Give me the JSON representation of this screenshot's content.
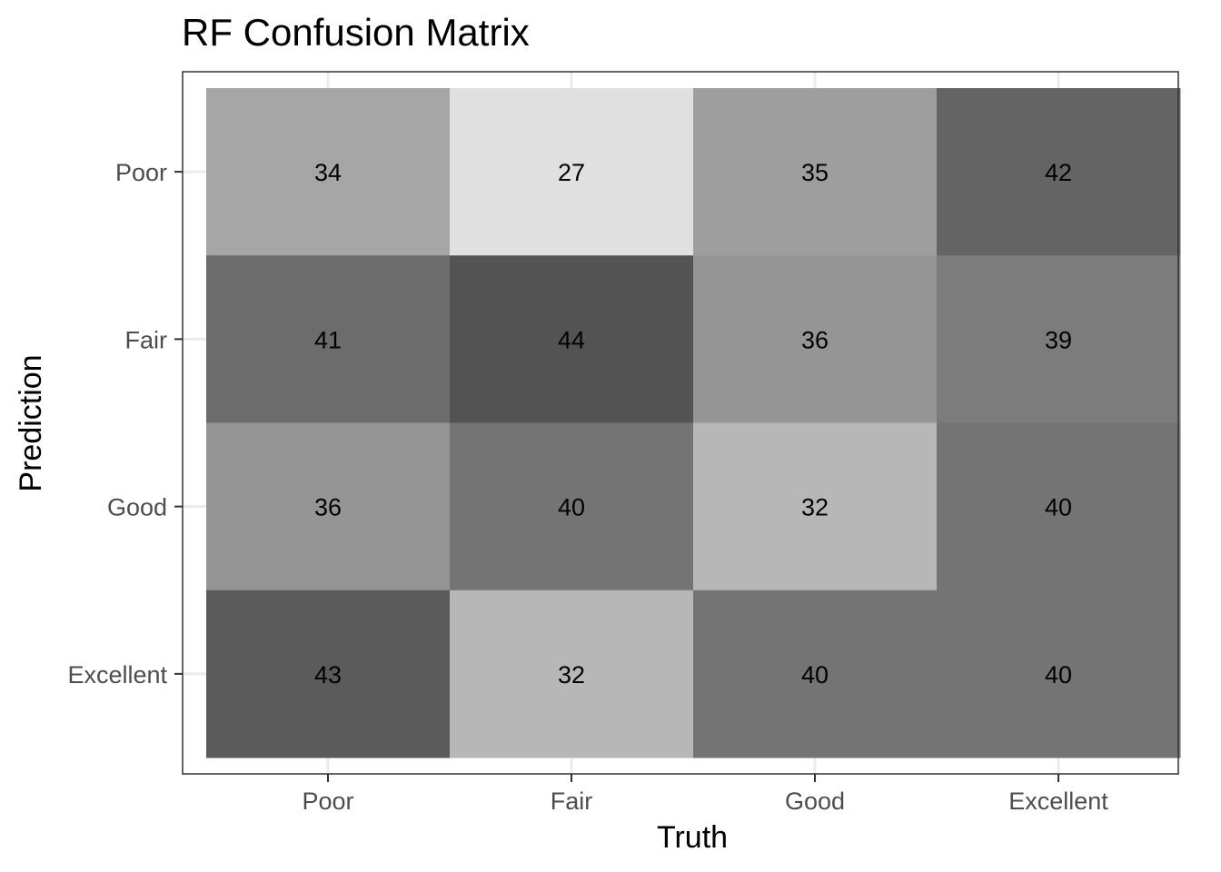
{
  "chart_data": {
    "type": "heatmap",
    "title": "RF Confusion Matrix",
    "xlabel": "Truth",
    "ylabel": "Prediction",
    "x_categories": [
      "Poor",
      "Fair",
      "Good",
      "Excellent"
    ],
    "y_categories": [
      "Poor",
      "Fair",
      "Good",
      "Excellent"
    ],
    "values": [
      [
        34,
        27,
        35,
        42
      ],
      [
        41,
        44,
        36,
        39
      ],
      [
        36,
        40,
        32,
        40
      ],
      [
        43,
        32,
        40,
        40
      ]
    ],
    "color_scale": "grayscale, darker = higher count",
    "grid": true,
    "legend": "none"
  }
}
